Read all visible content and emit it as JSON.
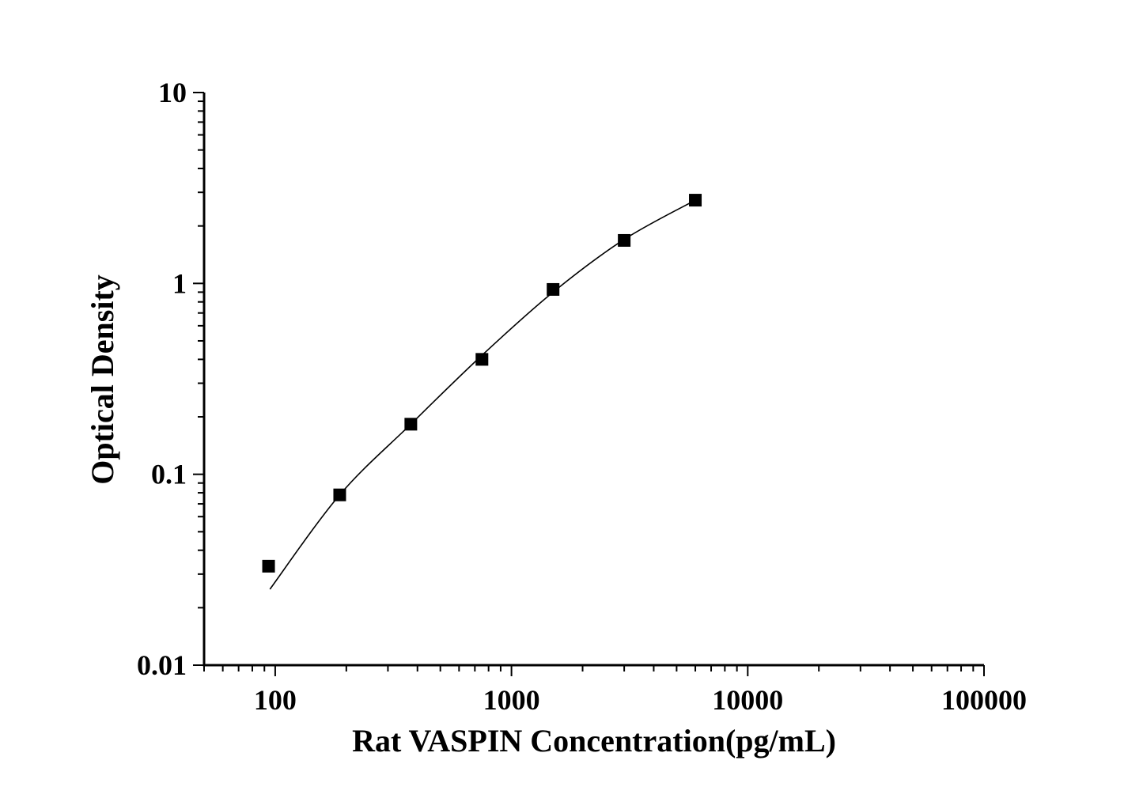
{
  "chart_data": {
    "type": "scatter",
    "title": "",
    "xlabel": "Rat VASPIN Concentration(pg/mL)",
    "ylabel": "Optical Density",
    "xscale": "log",
    "yscale": "log",
    "xlim": [
      50,
      100000
    ],
    "ylim": [
      0.01,
      10
    ],
    "xticks": [
      "100",
      "1000",
      "10000",
      "100000"
    ],
    "yticks": [
      "0.01",
      "0.1",
      "1",
      "10"
    ],
    "grid": false,
    "legend": "none",
    "marker": "square",
    "color": "#000000",
    "series": [
      {
        "x": [
          93.75,
          187.5,
          375,
          750,
          1500,
          3000,
          6000
        ],
        "y": [
          0.033,
          0.078,
          0.183,
          0.4,
          0.93,
          1.68,
          2.73
        ]
      }
    ],
    "fit_curve": {
      "x": [
        95,
        187.5,
        375,
        750,
        1500,
        3000,
        6000
      ],
      "y": [
        0.025,
        0.078,
        0.183,
        0.42,
        0.9,
        1.7,
        2.73
      ]
    }
  }
}
